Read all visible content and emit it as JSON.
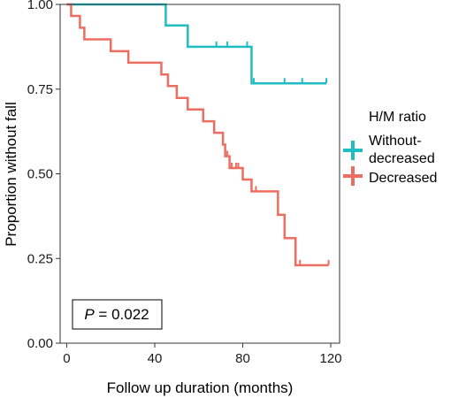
{
  "chart_data": {
    "type": "line",
    "subtype": "kaplan-meier",
    "xlabel": "Follow up duration (months)",
    "ylabel": "Proportion without fall",
    "xlim": [
      -3,
      124
    ],
    "ylim": [
      0,
      1
    ],
    "x_ticks": [
      0,
      40,
      80,
      120
    ],
    "x_tick_labels": [
      "0",
      "40",
      "80",
      "120"
    ],
    "y_ticks": [
      0,
      0.25,
      0.5,
      0.75,
      1.0
    ],
    "y_tick_labels": [
      "0.00",
      "0.25",
      "0.50",
      "0.75",
      "1.00"
    ],
    "grid": false,
    "legend": {
      "title": "H/M ratio",
      "position": "right",
      "entries": [
        {
          "lines": [
            "Without-",
            "decreased"
          ],
          "color": "#1FBDC2"
        },
        {
          "lines": [
            "Decreased"
          ],
          "color": "#EE6D61"
        }
      ]
    },
    "annotation": {
      "italic": "P",
      "rest": " = 0.022"
    },
    "series": [
      {
        "name": "Without-decreased",
        "color": "#1FBDC2",
        "steps": [
          [
            0,
            1.0
          ],
          [
            45,
            0.938
          ],
          [
            55,
            0.875
          ],
          [
            84,
            0.767
          ],
          [
            118,
            0.767
          ]
        ],
        "censored": [
          68,
          73,
          82,
          85,
          99,
          107,
          118
        ]
      },
      {
        "name": "Decreased",
        "color": "#EE6D61",
        "steps": [
          [
            0,
            1.0
          ],
          [
            2,
            0.966
          ],
          [
            6,
            0.931
          ],
          [
            8,
            0.897
          ],
          [
            20,
            0.862
          ],
          [
            28,
            0.828
          ],
          [
            43,
            0.793
          ],
          [
            46,
            0.759
          ],
          [
            50,
            0.724
          ],
          [
            55,
            0.69
          ],
          [
            62,
            0.655
          ],
          [
            67,
            0.621
          ],
          [
            71,
            0.586
          ],
          [
            72,
            0.552
          ],
          [
            74,
            0.517
          ],
          [
            80,
            0.483
          ],
          [
            84,
            0.448
          ],
          [
            96,
            0.379
          ],
          [
            99,
            0.31
          ],
          [
            104,
            0.23
          ],
          [
            119,
            0.23
          ]
        ],
        "censored": [
          67,
          73,
          75,
          77,
          78,
          86,
          106,
          119
        ]
      }
    ]
  }
}
